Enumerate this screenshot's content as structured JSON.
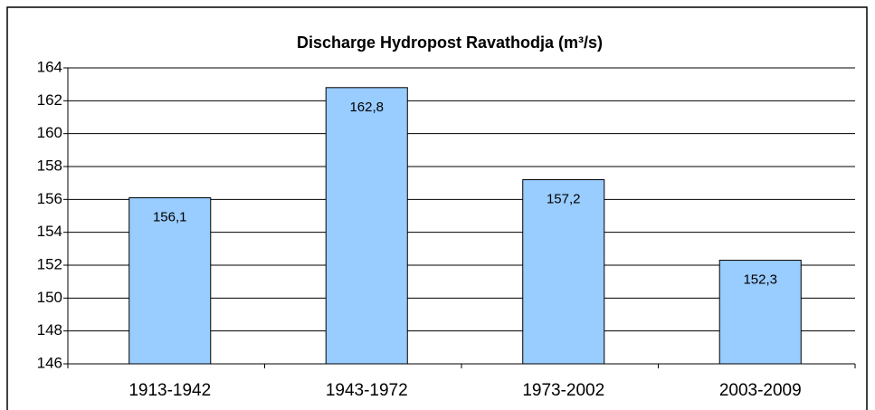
{
  "chart_data": {
    "type": "bar",
    "title": "Discharge Hydropost Ravathodja (m³/s)",
    "categories": [
      "1913-1942",
      "1943-1972",
      "1973-2002",
      "2003-2009"
    ],
    "values": [
      156.1,
      162.8,
      157.2,
      152.3
    ],
    "value_labels": [
      "156,1",
      "162,8",
      "157,2",
      "152,3"
    ],
    "color": "#99ccff",
    "ylim": [
      146,
      164
    ],
    "yticks": [
      146,
      148,
      150,
      152,
      154,
      156,
      158,
      160,
      162,
      164
    ],
    "grid": true
  }
}
